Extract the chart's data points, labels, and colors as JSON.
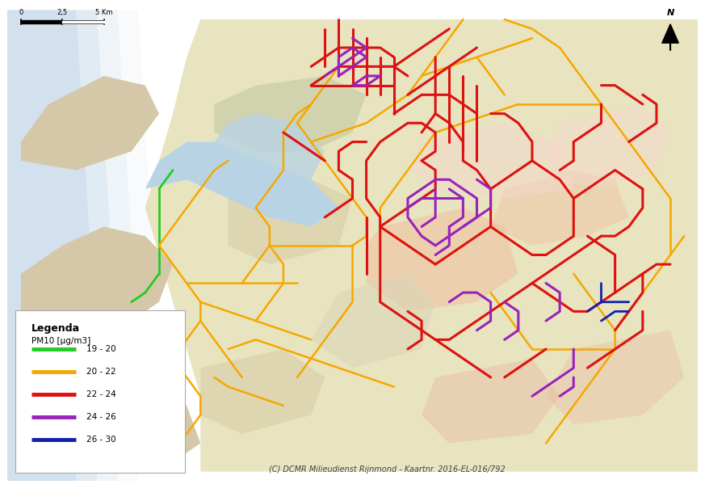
{
  "figure_bg": "#ffffff",
  "map_bg": "#c5dce8",
  "land_main": "#e8e4c0",
  "land_island": "#d4c8a8",
  "land_pale": "#ede8d0",
  "water_river": "#b8d4e4",
  "urban_pink": "#f0c0a0",
  "urban_light_pink": "#f5d8cc",
  "urban_gray_green": "#c8cca8",
  "urban_tan": "#d8cca8",
  "urban_rose": "#e8b4a0",
  "road_green": "#22cc22",
  "road_orange": "#f5a800",
  "road_red": "#dd1111",
  "road_purple": "#9922bb",
  "road_darkblue": "#1122aa",
  "legend_title": "Legenda",
  "legend_subtitle": "PM10 [µg/m3]",
  "legend_entries": [
    {
      "label": "19 - 20",
      "color": "#22cc22"
    },
    {
      "label": "20 - 22",
      "color": "#f5a800"
    },
    {
      "label": "22 - 24",
      "color": "#dd1111"
    },
    {
      "label": "24 - 26",
      "color": "#9922bb"
    },
    {
      "label": "26 - 30",
      "color": "#1122aa"
    }
  ],
  "copyright": "(C) DCMR Milieudienst Rijnmond - Kaartnr. 2016-EL-016/792"
}
